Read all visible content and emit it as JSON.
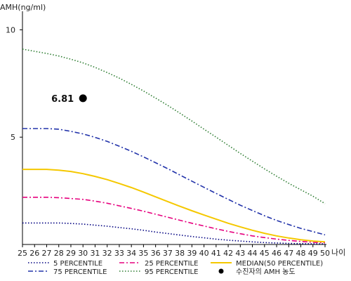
{
  "chart_data": {
    "type": "line",
    "title": "",
    "ylabel": "AMH(ng/ml)",
    "xlabel": "나이",
    "x": [
      25,
      26,
      27,
      28,
      29,
      30,
      31,
      32,
      33,
      34,
      35,
      36,
      37,
      38,
      39,
      40,
      41,
      42,
      43,
      44,
      45,
      46,
      47,
      48,
      49,
      50
    ],
    "xlim": [
      25,
      50
    ],
    "ylim": [
      0,
      10.8
    ],
    "yticks": [
      5,
      10
    ],
    "grid": false,
    "legend_position": "bottom",
    "series": [
      {
        "name": "5 PERCENTILE",
        "color": "#000080",
        "dash": "dotted",
        "values": [
          1.0,
          1.0,
          1.0,
          1.0,
          0.98,
          0.95,
          0.9,
          0.85,
          0.79,
          0.73,
          0.66,
          0.58,
          0.51,
          0.44,
          0.37,
          0.31,
          0.25,
          0.2,
          0.16,
          0.12,
          0.09,
          0.07,
          0.05,
          0.04,
          0.03,
          0.03
        ]
      },
      {
        "name": "25 PERCENTILE",
        "color": "#e6007e",
        "dash": "dashdot",
        "values": [
          2.2,
          2.2,
          2.2,
          2.18,
          2.14,
          2.1,
          2.02,
          1.92,
          1.8,
          1.68,
          1.55,
          1.41,
          1.27,
          1.13,
          0.99,
          0.86,
          0.73,
          0.61,
          0.5,
          0.4,
          0.32,
          0.25,
          0.19,
          0.14,
          0.1,
          0.08
        ]
      },
      {
        "name": "MEDIAN(50 PERCENTILE)",
        "color": "#f5c800",
        "dash": "solid",
        "values": [
          3.5,
          3.5,
          3.5,
          3.46,
          3.4,
          3.3,
          3.17,
          3.02,
          2.84,
          2.65,
          2.44,
          2.22,
          2.0,
          1.78,
          1.57,
          1.37,
          1.18,
          0.99,
          0.82,
          0.66,
          0.52,
          0.4,
          0.3,
          0.22,
          0.16,
          0.12
        ]
      },
      {
        "name": "75 PERCENTILE",
        "color": "#2233aa",
        "dash": "dashdot",
        "values": [
          5.4,
          5.4,
          5.4,
          5.37,
          5.27,
          5.15,
          4.99,
          4.8,
          4.58,
          4.34,
          4.08,
          3.81,
          3.53,
          3.24,
          2.95,
          2.66,
          2.38,
          2.1,
          1.83,
          1.58,
          1.34,
          1.12,
          0.93,
          0.75,
          0.6,
          0.45
        ]
      },
      {
        "name": "95 PERCENTILE",
        "color": "#2e7d32",
        "dash": "dotted",
        "values": [
          9.1,
          9.0,
          8.9,
          8.78,
          8.63,
          8.46,
          8.25,
          8.01,
          7.75,
          7.46,
          7.15,
          6.82,
          6.48,
          6.12,
          5.75,
          5.37,
          5.0,
          4.62,
          4.24,
          3.88,
          3.52,
          3.18,
          2.85,
          2.55,
          2.25,
          1.9
        ]
      }
    ],
    "points": [
      {
        "name": "수진자의 AMH 농도",
        "x": 30,
        "y": 6.81,
        "label": "6.81",
        "color": "#000000"
      }
    ],
    "legend": [
      "5 PERCENTILE",
      "25 PERCENTILE",
      "MEDIAN(50 PERCENTILE)",
      "75 PERCENTILE",
      "95 PERCENTILE",
      "수진자의 AMH 농도"
    ]
  }
}
